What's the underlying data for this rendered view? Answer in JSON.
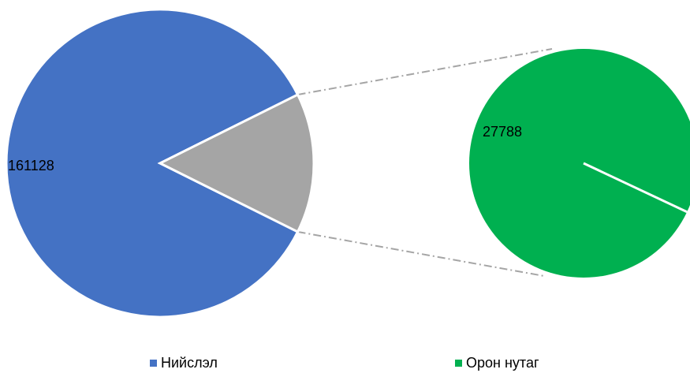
{
  "chart_data": {
    "type": "pie-of-pie",
    "categories": [
      "Нийслэл",
      "Орон нутаг"
    ],
    "values": [
      161128,
      27788
    ],
    "colors": [
      "#4472c4",
      "#00b050"
    ],
    "aggregate_color": "#a5a5a5"
  }
}
